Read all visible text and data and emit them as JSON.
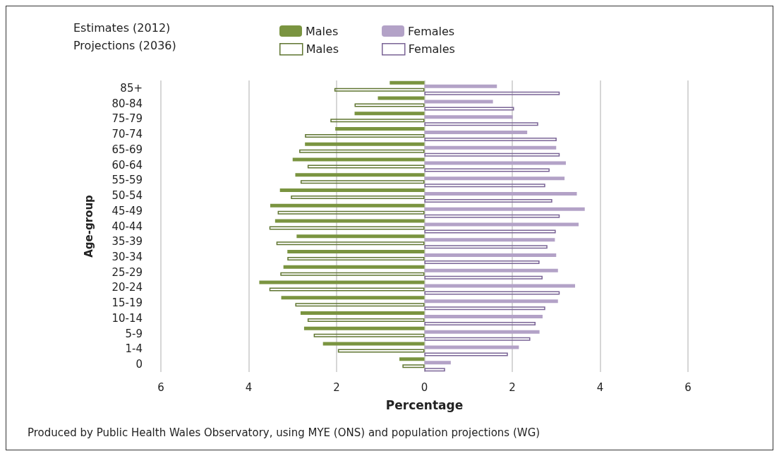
{
  "chart_data": {
    "type": "bar",
    "orientation": "horizontal",
    "xlabel": "Percentage",
    "ylabel": "Age-group",
    "categories": [
      "85+",
      "80-84",
      "75-79",
      "70-74",
      "65-69",
      "60-64",
      "55-59",
      "50-54",
      "45-49",
      "40-44",
      "35-39",
      "30-34",
      "25-29",
      "20-24",
      "15-19",
      "10-14",
      "5-9",
      "1-4",
      "0"
    ],
    "series": [
      {
        "name": "Males",
        "color": "#7a9440",
        "values": [
          -0.79,
          -1.06,
          -1.59,
          -2.03,
          -2.72,
          -3.0,
          -2.94,
          -3.29,
          -3.51,
          -3.4,
          -2.91,
          -3.12,
          -3.21,
          -3.76,
          -3.26,
          -2.82,
          -2.74,
          -2.31,
          -0.57
        ]
      },
      {
        "name": "Females",
        "color": "#b3a2c7",
        "values": [
          1.65,
          1.56,
          2.01,
          2.34,
          3.0,
          3.22,
          3.19,
          3.47,
          3.65,
          3.51,
          2.97,
          3.0,
          3.04,
          3.43,
          3.04,
          2.69,
          2.62,
          2.15,
          0.6
        ]
      },
      {
        "name": "Males",
        "color": "#5f7530",
        "values": [
          -2.05,
          -1.59,
          -2.14,
          -2.72,
          -2.85,
          -2.66,
          -2.82,
          -3.04,
          -3.34,
          -3.53,
          -3.37,
          -3.12,
          -3.28,
          -3.53,
          -2.94,
          -2.66,
          -2.52,
          -1.97,
          -0.5
        ]
      },
      {
        "name": "Females",
        "color": "#7a6496",
        "values": [
          3.08,
          2.04,
          2.59,
          3.01,
          3.08,
          2.85,
          2.75,
          2.91,
          3.08,
          2.99,
          2.8,
          2.62,
          2.69,
          3.08,
          2.75,
          2.53,
          2.41,
          1.9,
          0.47
        ]
      }
    ],
    "xlim": [
      -6,
      6
    ],
    "xticks": [
      {
        "value": -6,
        "label": "6"
      },
      {
        "value": -4,
        "label": "4"
      },
      {
        "value": -2,
        "label": "2"
      },
      0,
      2,
      4,
      6
    ],
    "grid": "x",
    "legend": "top",
    "annotations": [
      "Estimates (2012)",
      "Projections (2036)",
      "Produced by Public Health Wales Observatory, using MYE (ONS) and population projections (WG)"
    ]
  }
}
